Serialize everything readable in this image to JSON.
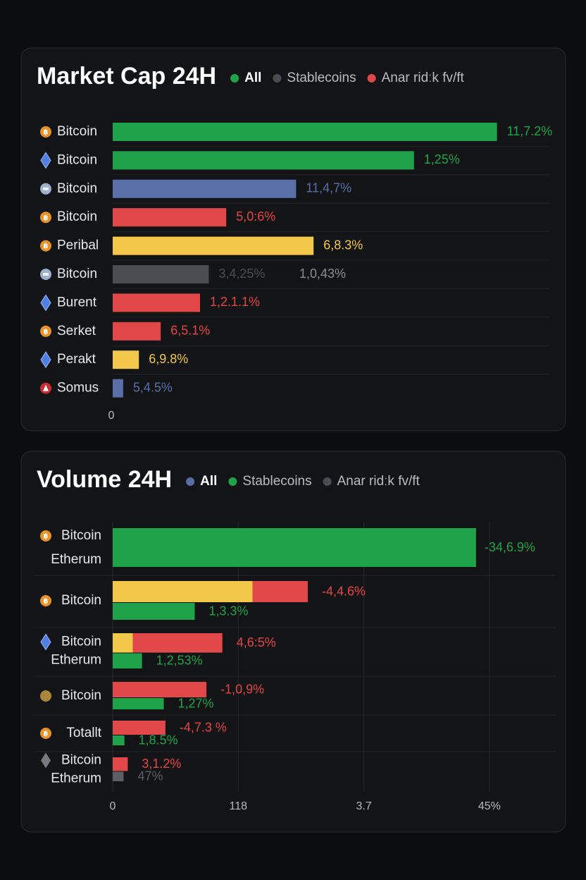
{
  "chart_data": [
    {
      "type": "bar",
      "title": "Market Cap 24H",
      "legend": [
        {
          "name": "All",
          "color": "#1fa34a"
        },
        {
          "name": "Stablecoins",
          "color": "#4a4d52"
        },
        {
          "name": "Anar ridːk fv/ft",
          "color": "#e0484a"
        }
      ],
      "categories": [
        "Bitcoin",
        "Bitcoin",
        "Bitcoin",
        "Bitcoin",
        "Peribal",
        "Bitcoin",
        "Burent",
        "Serket",
        "Perakt",
        "Somus"
      ],
      "values": [
        88,
        69,
        42,
        26,
        46,
        22,
        20,
        11,
        6,
        2.4
      ],
      "value_labels": [
        "11,7.2%",
        "1,25%",
        "11,4,7%",
        "5,0:6%",
        "6,8.3%",
        "3,4,25%",
        "1,2.1.1%",
        "6,5.1%",
        "6,9.8%",
        "5,4.5%"
      ],
      "colors": [
        "#1fa34a",
        "#1fa34a",
        "#5a6ea8",
        "#e0484a",
        "#f2c84b",
        "#4a4d52",
        "#e0484a",
        "#e0484a",
        "#f2c84b",
        "#5a6ea8"
      ],
      "annotations": [
        "1,0,43%"
      ],
      "xlim": [
        0,
        100
      ],
      "xticks": [
        0
      ]
    },
    {
      "type": "stacked_bar",
      "title": "Volume 24H",
      "legend": [
        {
          "name": "All",
          "color": "#5a6ea8"
        },
        {
          "name": "Stablecoins",
          "color": "#1fa34a"
        },
        {
          "name": "Anar ridːk fv/ft",
          "color": "#4a4d52"
        }
      ],
      "categories": [
        [
          "Bitcoin",
          "Etherum"
        ],
        [
          "Bitcoin"
        ],
        [
          "Bitcoin",
          "Etherum"
        ],
        [
          "Bitcoin"
        ],
        [
          "Totallt"
        ],
        [
          "Bitcoin",
          "Etherum"
        ]
      ],
      "series": [
        {
          "color": "#f2c84b",
          "values": [
            null,
            16.7,
            2.4,
            null,
            null,
            null
          ]
        },
        {
          "color": "#e0484a",
          "values": [
            null,
            6.6,
            10.7,
            11.2,
            6.3,
            1.8
          ],
          "value_labels": [
            null,
            "-4,4.6%",
            "4,6:5%",
            "-1,0,9%",
            "-4,7.3 %",
            "3,1.2%"
          ]
        },
        {
          "color": "#1fa34a",
          "values": [
            43.4,
            9.8,
            3.5,
            6.1,
            1.4,
            null
          ],
          "value_labels": [
            "-34,6.9%",
            "1,3.3%",
            "1,2,53%",
            "1,27%",
            "1,8.5%",
            null
          ]
        },
        {
          "color": "#5c5f66",
          "values": [
            null,
            null,
            null,
            null,
            null,
            1.3
          ],
          "value_labels": [
            null,
            null,
            null,
            null,
            null,
            "47%"
          ]
        }
      ],
      "xlim": [
        0,
        53
      ],
      "xticks": [
        0,
        {
          "value": 15,
          "label": "118"
        },
        {
          "value": 30,
          "label": "3.7"
        },
        {
          "value": 45,
          "label": "45%"
        }
      ],
      "grid": true
    }
  ]
}
